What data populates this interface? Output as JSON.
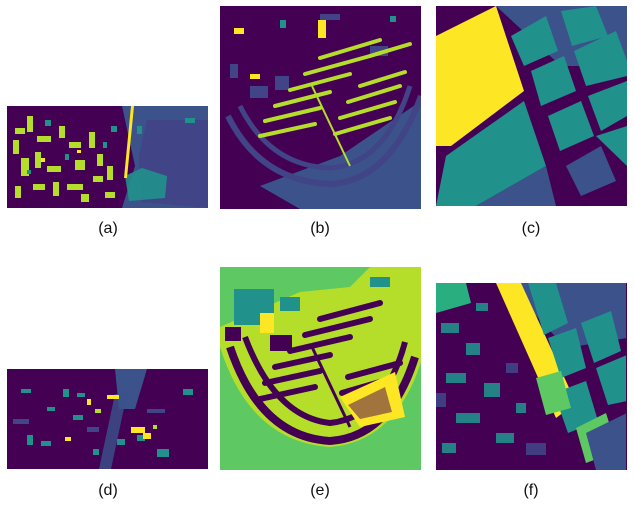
{
  "captions": [
    "(a)",
    "(b)",
    "(c)",
    "(d)",
    "(e)",
    "(f)"
  ],
  "palette": {
    "purple": "#440154",
    "indigo": "#3b528b",
    "blue_slate": "#414487",
    "teal": "#21918c",
    "green_teal": "#29af7f",
    "green": "#5ec962",
    "lime": "#b5de2b",
    "yellow": "#fde725"
  }
}
